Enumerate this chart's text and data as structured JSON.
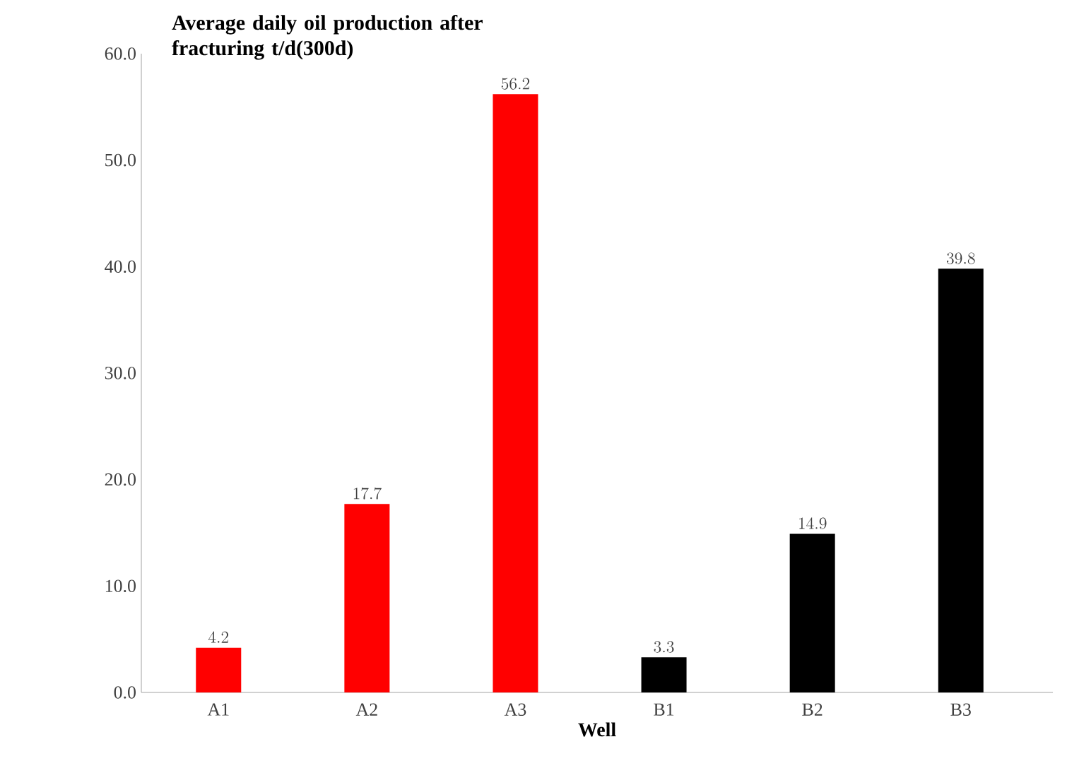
{
  "chart_data": {
    "type": "bar",
    "ylabel": "Average daily oil production after fracturing t/d(300d)",
    "xlabel": "Well",
    "categories": [
      "A1",
      "A2",
      "A3",
      "B1",
      "B2",
      "B3"
    ],
    "values": [
      4.2,
      17.7,
      56.2,
      3.3,
      14.9,
      39.8
    ],
    "colors": [
      "#ff0000",
      "#ff0000",
      "#ff0000",
      "#000000",
      "#000000",
      "#000000"
    ],
    "ylim": [
      0,
      60
    ],
    "yticks": [
      {
        "value": 0,
        "label": "0.0"
      },
      {
        "value": 10,
        "label": "10.0"
      },
      {
        "value": 20,
        "label": "20.0"
      },
      {
        "value": 30,
        "label": "30.0"
      },
      {
        "value": 40,
        "label": "40.0"
      },
      {
        "value": 50,
        "label": "50.0"
      },
      {
        "value": 60,
        "label": "60.0"
      }
    ],
    "data_labels": true
  }
}
